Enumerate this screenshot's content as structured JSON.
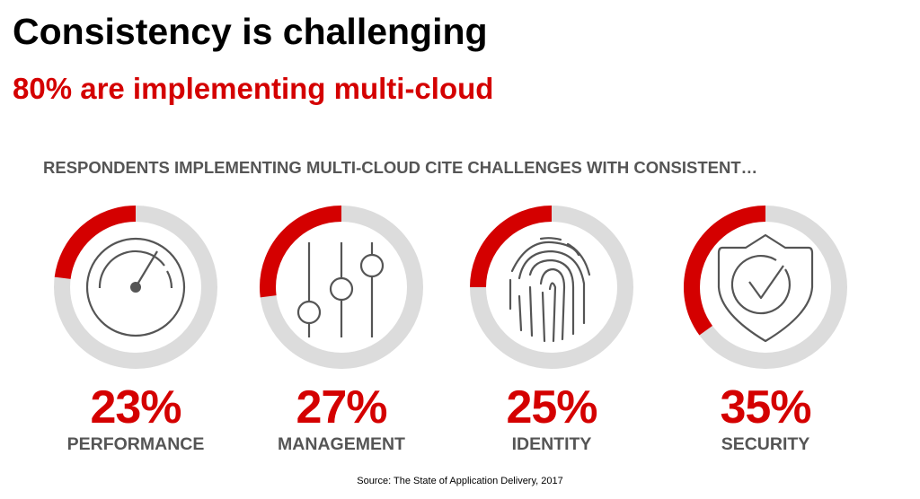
{
  "title": "Consistency is challenging",
  "subtitle": "80% are implementing multi-cloud",
  "heading": "RESPONDENTS IMPLEMENTING MULTI-CLOUD CITE CHALLENGES WITH CONSISTENT…",
  "source": "Source: The State of Application Delivery, 2017",
  "colors": {
    "accent": "#d40000",
    "track": "#dcdcdc",
    "icon": "#555555"
  },
  "chart_data": {
    "type": "donut",
    "categories": [
      "PERFORMANCE",
      "MANAGEMENT",
      "IDENTITY",
      "SECURITY"
    ],
    "values": [
      23,
      27,
      25,
      35
    ],
    "labels": [
      "23%",
      "27%",
      "25%",
      "35%"
    ],
    "icons": [
      "speedometer-icon",
      "sliders-icon",
      "fingerprint-icon",
      "shield-check-icon"
    ],
    "range": [
      0,
      100
    ],
    "direction": "counter-clockwise from top"
  }
}
